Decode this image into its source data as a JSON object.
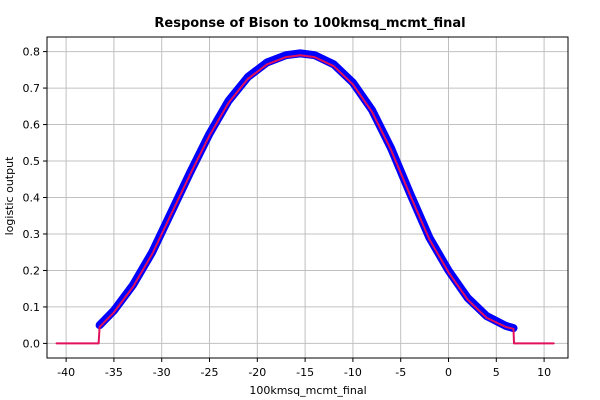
{
  "chart_data": {
    "type": "line",
    "title": "Response of Bison to 100kmsq_mcmt_final",
    "xlabel": "100kmsq_mcmt_final",
    "ylabel": "logistic output",
    "xlim": [
      -42,
      12.5
    ],
    "ylim": [
      -0.04,
      0.84
    ],
    "xticks": [
      -40,
      -35,
      -30,
      -25,
      -20,
      -15,
      -10,
      -5,
      0,
      5,
      10
    ],
    "yticks": [
      0.0,
      0.1,
      0.2,
      0.3,
      0.4,
      0.5,
      0.6,
      0.7,
      0.8
    ],
    "ytick_labels": [
      "0.0",
      "0.1",
      "0.2",
      "0.3",
      "0.4",
      "0.5",
      "0.6",
      "0.7",
      "0.8"
    ],
    "grid": true,
    "series": [
      {
        "role": "variability-band",
        "color": "#0000ff",
        "x": [
          -36.5,
          -35,
          -33,
          -31,
          -29,
          -27,
          -25,
          -23,
          -21,
          -19,
          -17,
          -15.5,
          -14,
          -12,
          -10,
          -8,
          -6,
          -4,
          -2,
          0,
          2,
          4,
          6,
          6.8
        ],
        "y": [
          0.05,
          0.09,
          0.16,
          0.25,
          0.36,
          0.47,
          0.575,
          0.665,
          0.73,
          0.77,
          0.79,
          0.795,
          0.79,
          0.765,
          0.715,
          0.64,
          0.535,
          0.41,
          0.29,
          0.2,
          0.125,
          0.075,
          0.048,
          0.042
        ]
      },
      {
        "role": "mean",
        "color": "#e0105a",
        "x": [
          -41,
          -36.6,
          -36.5,
          -35,
          -33,
          -31,
          -29,
          -27,
          -25,
          -23,
          -21,
          -19,
          -17,
          -15.5,
          -14,
          -12,
          -10,
          -8,
          -6,
          -4,
          -2,
          0,
          2,
          4,
          6,
          6.8,
          6.85,
          11
        ],
        "y": [
          0.0,
          0.0,
          0.045,
          0.085,
          0.155,
          0.245,
          0.355,
          0.465,
          0.57,
          0.66,
          0.725,
          0.765,
          0.785,
          0.79,
          0.785,
          0.76,
          0.71,
          0.635,
          0.53,
          0.405,
          0.285,
          0.195,
          0.12,
          0.07,
          0.045,
          0.04,
          0.0,
          0.0
        ]
      }
    ]
  }
}
